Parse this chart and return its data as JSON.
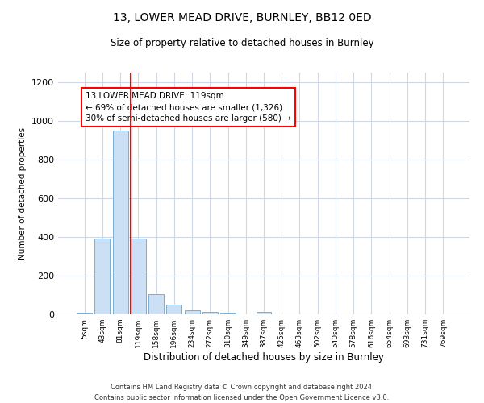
{
  "title": "13, LOWER MEAD DRIVE, BURNLEY, BB12 0ED",
  "subtitle": "Size of property relative to detached houses in Burnley",
  "xlabel": "Distribution of detached houses by size in Burnley",
  "ylabel": "Number of detached properties",
  "categories": [
    "5sqm",
    "43sqm",
    "81sqm",
    "119sqm",
    "158sqm",
    "196sqm",
    "234sqm",
    "272sqm",
    "310sqm",
    "349sqm",
    "387sqm",
    "425sqm",
    "463sqm",
    "502sqm",
    "540sqm",
    "578sqm",
    "616sqm",
    "654sqm",
    "693sqm",
    "731sqm",
    "769sqm"
  ],
  "values": [
    10,
    390,
    950,
    390,
    105,
    50,
    22,
    12,
    10,
    0,
    12,
    0,
    0,
    0,
    0,
    0,
    0,
    0,
    0,
    0,
    0
  ],
  "bar_color": "#cce0f5",
  "bar_edge_color": "#7aafd4",
  "highlight_index": 3,
  "highlight_color": "#ff0000",
  "annotation_text": "13 LOWER MEAD DRIVE: 119sqm\n← 69% of detached houses are smaller (1,326)\n30% of semi-detached houses are larger (580) →",
  "annotation_box_color": "#ffffff",
  "annotation_box_edge_color": "#ff0000",
  "footer_text": "Contains HM Land Registry data © Crown copyright and database right 2024.\nContains public sector information licensed under the Open Government Licence v3.0.",
  "ylim": [
    0,
    1250
  ],
  "background_color": "#ffffff",
  "grid_color": "#d0d8e8",
  "yticks": [
    0,
    200,
    400,
    600,
    800,
    1000,
    1200
  ]
}
